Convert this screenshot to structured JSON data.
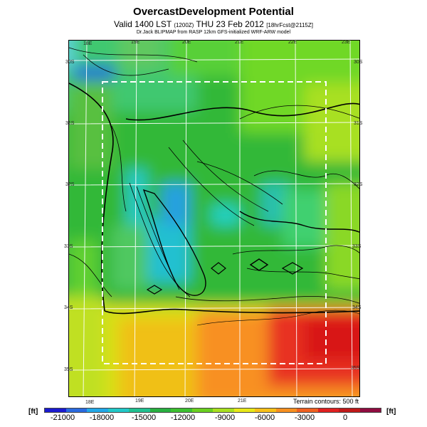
{
  "header": {
    "title": "OvercastDevelopment Potential",
    "valid_prefix": "Valid 1400 LST",
    "valid_zulu": "(1200Z)",
    "valid_date": "THU 23 Feb 2012",
    "valid_suffix": "[18hrFcst@2115Z]",
    "credit": "Dr.Jack BLIPMAP from RASP 12km GFS-initialized WRF-ARW model"
  },
  "map": {
    "lon_labels_top": [
      "18E",
      "19E",
      "20E",
      "21E",
      "22E",
      "23E"
    ],
    "lon_labels_bottom": [
      "18E",
      "19E",
      "20E",
      "21E"
    ],
    "lat_labels_left": [
      "30S",
      "31S",
      "32S",
      "33S",
      "34S",
      "35S"
    ],
    "lat_labels_right": [
      "30S",
      "31S",
      "32S",
      "33S",
      "34S",
      "35S"
    ],
    "terrain_note": "Terrain contours: 500 ft"
  },
  "colorbar": {
    "unit_left": "[ft]",
    "unit_right": "[ft]",
    "labels": [
      "-21000",
      "-18000",
      "-15000",
      "-12000",
      "-9000",
      "-6000",
      "-3000",
      "0"
    ],
    "min": -21000,
    "max": 3000,
    "colors": [
      "#1a1ad0",
      "#2a6ae0",
      "#22a8e8",
      "#22c8c8",
      "#20c090",
      "#28b040",
      "#3cc030",
      "#6ad020",
      "#a8e020",
      "#e8e818",
      "#f8c018",
      "#f89020",
      "#f06020",
      "#e02020",
      "#c01818",
      "#900c40"
    ]
  }
}
